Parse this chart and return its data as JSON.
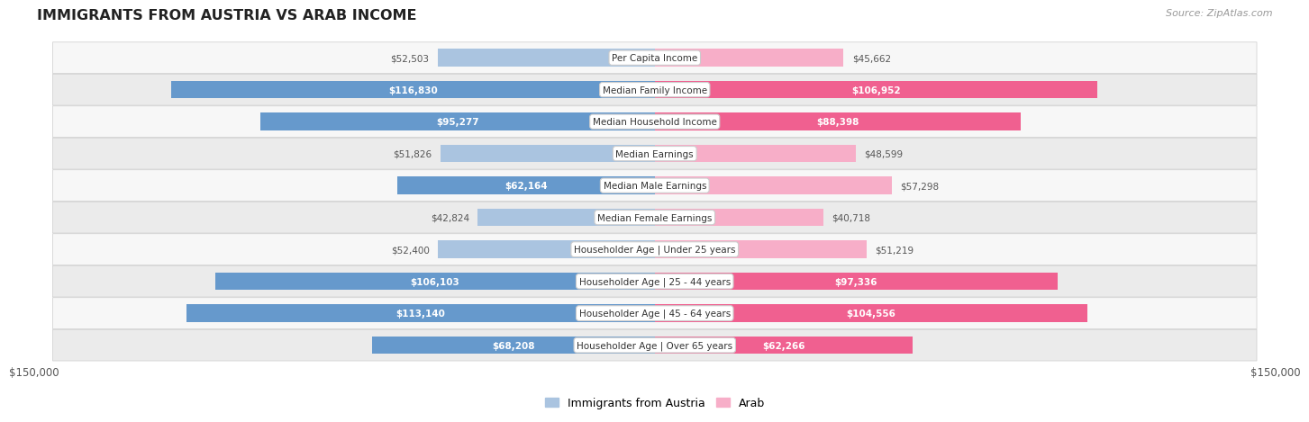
{
  "title": "IMMIGRANTS FROM AUSTRIA VS ARAB INCOME",
  "source": "Source: ZipAtlas.com",
  "categories": [
    "Per Capita Income",
    "Median Family Income",
    "Median Household Income",
    "Median Earnings",
    "Median Male Earnings",
    "Median Female Earnings",
    "Householder Age | Under 25 years",
    "Householder Age | 25 - 44 years",
    "Householder Age | 45 - 64 years",
    "Householder Age | Over 65 years"
  ],
  "austria_values": [
    52503,
    116830,
    95277,
    51826,
    62164,
    42824,
    52400,
    106103,
    113140,
    68208
  ],
  "arab_values": [
    45662,
    106952,
    88398,
    48599,
    57298,
    40718,
    51219,
    97336,
    104556,
    62266
  ],
  "austria_color_light": "#aac4e0",
  "austria_color_dark": "#6699cc",
  "arab_color_light": "#f7aec8",
  "arab_color_dark": "#f06090",
  "label_inside_color": "#ffffff",
  "label_outside_color": "#555555",
  "max_value": 150000,
  "bar_height": 0.55,
  "row_bg_light": "#f7f7f7",
  "row_bg_dark": "#ebebeb",
  "inside_threshold": 60000,
  "x_tick_label": "$150,000",
  "background_color": "#ffffff",
  "legend_austria": "Immigrants from Austria",
  "legend_arab": "Arab"
}
